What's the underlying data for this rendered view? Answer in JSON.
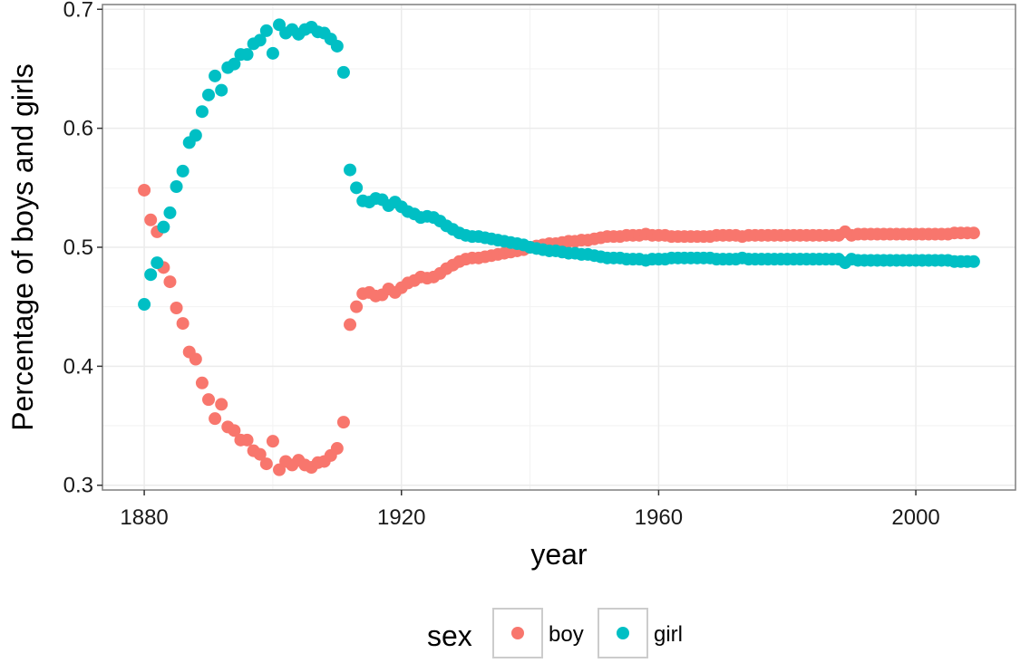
{
  "chart_data": {
    "type": "scatter",
    "title": "",
    "xlabel": "year",
    "ylabel": "Percentage of boys and girls",
    "xlim": [
      1873.5,
      2015.5
    ],
    "ylim": [
      0.296,
      0.704
    ],
    "x_ticks": [
      1880,
      1920,
      1960,
      2000
    ],
    "y_ticks": [
      0.3,
      0.4,
      0.5,
      0.6,
      0.7
    ],
    "x_tick_labels": [
      "1880",
      "1920",
      "1960",
      "2000"
    ],
    "y_tick_labels": [
      "0.3",
      "0.4",
      "0.5",
      "0.6",
      "0.7"
    ],
    "grid": true,
    "legend": {
      "title": "sex",
      "position": "bottom",
      "entries": [
        "boy",
        "girl"
      ]
    },
    "colors": {
      "boy": "#F8766D",
      "girl": "#00BFC4"
    },
    "x": [
      1880,
      1881,
      1882,
      1883,
      1884,
      1885,
      1886,
      1887,
      1888,
      1889,
      1890,
      1891,
      1892,
      1893,
      1894,
      1895,
      1896,
      1897,
      1898,
      1899,
      1900,
      1901,
      1902,
      1903,
      1904,
      1905,
      1906,
      1907,
      1908,
      1909,
      1910,
      1911,
      1912,
      1913,
      1914,
      1915,
      1916,
      1917,
      1918,
      1919,
      1920,
      1921,
      1922,
      1923,
      1924,
      1925,
      1926,
      1927,
      1928,
      1929,
      1930,
      1931,
      1932,
      1933,
      1934,
      1935,
      1936,
      1937,
      1938,
      1939,
      1940,
      1941,
      1942,
      1943,
      1944,
      1945,
      1946,
      1947,
      1948,
      1949,
      1950,
      1951,
      1952,
      1953,
      1954,
      1955,
      1956,
      1957,
      1958,
      1959,
      1960,
      1961,
      1962,
      1963,
      1964,
      1965,
      1966,
      1967,
      1968,
      1969,
      1970,
      1971,
      1972,
      1973,
      1974,
      1975,
      1976,
      1977,
      1978,
      1979,
      1980,
      1981,
      1982,
      1983,
      1984,
      1985,
      1986,
      1987,
      1988,
      1989,
      1990,
      1991,
      1992,
      1993,
      1994,
      1995,
      1996,
      1997,
      1998,
      1999,
      2000,
      2001,
      2002,
      2003,
      2004,
      2005,
      2006,
      2007,
      2008,
      2009
    ],
    "series": [
      {
        "name": "boy",
        "values": [
          0.548,
          0.523,
          0.513,
          0.483,
          0.471,
          0.449,
          0.436,
          0.412,
          0.406,
          0.386,
          0.372,
          0.356,
          0.368,
          0.349,
          0.346,
          0.338,
          0.338,
          0.329,
          0.326,
          0.318,
          0.337,
          0.313,
          0.32,
          0.317,
          0.321,
          0.317,
          0.315,
          0.319,
          0.32,
          0.325,
          0.331,
          0.353,
          0.435,
          0.45,
          0.461,
          0.462,
          0.459,
          0.46,
          0.465,
          0.462,
          0.466,
          0.47,
          0.472,
          0.475,
          0.474,
          0.475,
          0.478,
          0.482,
          0.485,
          0.488,
          0.49,
          0.491,
          0.491,
          0.492,
          0.493,
          0.494,
          0.495,
          0.496,
          0.497,
          0.498,
          0.5,
          0.501,
          0.502,
          0.503,
          0.503,
          0.504,
          0.505,
          0.505,
          0.506,
          0.506,
          0.507,
          0.508,
          0.509,
          0.509,
          0.509,
          0.51,
          0.51,
          0.51,
          0.511,
          0.51,
          0.51,
          0.51,
          0.509,
          0.509,
          0.509,
          0.509,
          0.509,
          0.509,
          0.509,
          0.51,
          0.51,
          0.51,
          0.51,
          0.509,
          0.51,
          0.51,
          0.51,
          0.51,
          0.51,
          0.51,
          0.51,
          0.51,
          0.51,
          0.51,
          0.51,
          0.51,
          0.51,
          0.51,
          0.51,
          0.513,
          0.51,
          0.511,
          0.511,
          0.511,
          0.511,
          0.511,
          0.511,
          0.511,
          0.511,
          0.511,
          0.511,
          0.511,
          0.511,
          0.511,
          0.511,
          0.511,
          0.512,
          0.512,
          0.512,
          0.512
        ]
      },
      {
        "name": "girl",
        "values": [
          0.452,
          0.477,
          0.487,
          0.517,
          0.529,
          0.551,
          0.564,
          0.588,
          0.594,
          0.614,
          0.628,
          0.644,
          0.632,
          0.651,
          0.654,
          0.662,
          0.662,
          0.671,
          0.674,
          0.682,
          0.663,
          0.687,
          0.68,
          0.683,
          0.679,
          0.683,
          0.685,
          0.681,
          0.68,
          0.675,
          0.669,
          0.647,
          0.565,
          0.55,
          0.539,
          0.538,
          0.541,
          0.54,
          0.535,
          0.538,
          0.534,
          0.53,
          0.528,
          0.525,
          0.526,
          0.525,
          0.522,
          0.518,
          0.515,
          0.512,
          0.51,
          0.509,
          0.509,
          0.508,
          0.507,
          0.506,
          0.505,
          0.504,
          0.503,
          0.502,
          0.5,
          0.499,
          0.498,
          0.497,
          0.497,
          0.496,
          0.495,
          0.495,
          0.494,
          0.494,
          0.493,
          0.492,
          0.491,
          0.491,
          0.491,
          0.49,
          0.49,
          0.49,
          0.489,
          0.49,
          0.49,
          0.49,
          0.491,
          0.491,
          0.491,
          0.491,
          0.491,
          0.491,
          0.491,
          0.49,
          0.49,
          0.49,
          0.49,
          0.491,
          0.49,
          0.49,
          0.49,
          0.49,
          0.49,
          0.49,
          0.49,
          0.49,
          0.49,
          0.49,
          0.49,
          0.49,
          0.49,
          0.49,
          0.49,
          0.487,
          0.49,
          0.489,
          0.489,
          0.489,
          0.489,
          0.489,
          0.489,
          0.489,
          0.489,
          0.489,
          0.489,
          0.489,
          0.489,
          0.489,
          0.489,
          0.489,
          0.488,
          0.488,
          0.488,
          0.488
        ]
      }
    ]
  }
}
